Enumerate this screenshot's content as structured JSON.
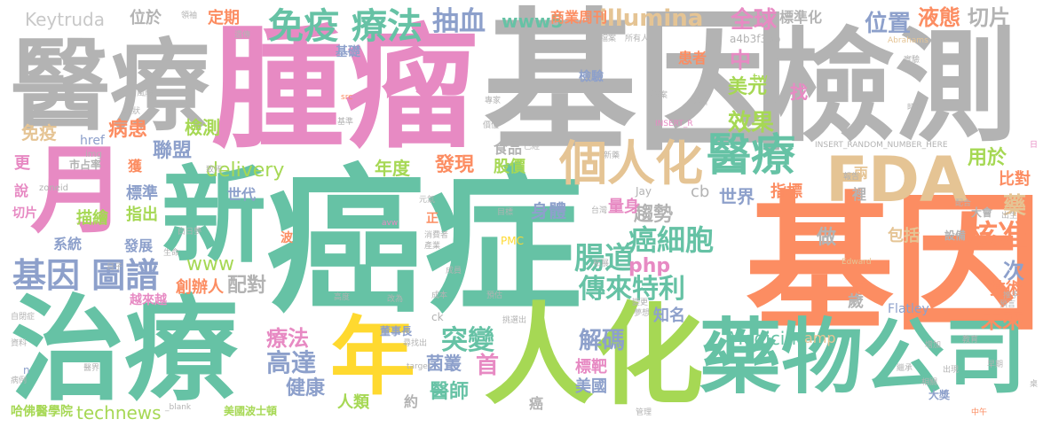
{
  "colors": {
    "background": "#ffffff",
    "teal": "#66c2a5",
    "orange": "#fc8d62",
    "gray": "#b3b3b3",
    "pink": "#e78ac3",
    "slate": "#8da0cb",
    "green": "#a6d854",
    "yellow": "#ffd92f",
    "tan": "#e5c494"
  },
  "words": {
    "aizheng": "癌症",
    "zhongliu": "腫瘤",
    "jiyin_top": "基因",
    "jiance": "檢測",
    "yiliao_top": "醫療",
    "jiyin_right": "基因",
    "zhiliao": "治療",
    "xin": "新",
    "ren_hua": "人化",
    "yaowu_gongsi": "藥物公司",
    "fda": "FDA",
    "yue": "月",
    "nian": "年",
    "geren_hua": "個人化",
    "yiliao_mid": "醫療",
    "mianyi_liaofa": "免疫 療法",
    "jiyin_tupu": "基因 圖譜",
    "chuanlai_teli": "傳來特利",
    "ai_xibao": "癌細胞",
    "chang_dao": "腸道",
    "hezhun": "核准",
    "weilai": "未來",
    "tubian": "突變",
    "gao_da": "高達",
    "liaofa_small": "療法",
    "jieme": "解碼",
    "illumina": "illumina",
    "delivery": "delivery",
    "medicine": "Medicine",
    "technews": "technews",
    "www": "www",
    "www5": "www5",
    "php": "php",
    "keytruda": "Keytruda",
    "choubing": "抽血",
    "xiaoguo": "效果",
    "quanqiu": "全球",
    "weizhi": "位置",
    "yetai": "液態",
    "qiepian_top": "切片",
    "meiyuan": "美元",
    "zhong": "中",
    "bingren": "病患",
    "mianyi_small": "免疫",
    "jiance_small": "檢測",
    "lianmeng": "聯盟",
    "niandu": "年度",
    "faxian": "發現",
    "gujia": "股價",
    "shipin": "食品",
    "quxian": "趨勢",
    "shenti": "身體",
    "liangshen": "量身",
    "shijie": "世界",
    "zhibiao": "指標",
    "yongyu": "用於",
    "bidui": "比對",
    "yao": "藥",
    "baokuo": "包括",
    "ci": "次",
    "jishu": "技術",
    "sui": "歲",
    "zhao": "找",
    "zuo": "做",
    "peidui": "配對",
    "jiankang": "健康",
    "yishi": "醫師",
    "juncong": "菌叢",
    "shou": "首",
    "zhiming": "知名",
    "biaoba": "標靶",
    "meiguo": "美國",
    "renlei": "人類",
    "yue_small": "約",
    "ai_small": "癌",
    "zhichu": "指出",
    "biaozhun": "標準",
    "miaohui": "描繪",
    "xitong": "系統",
    "fazhan": "發展",
    "chuangbanren": "創辦人",
    "yuelaiyue": "越來越",
    "huo": "獲",
    "geng": "更",
    "shuo": "說",
    "qiepian_left": "切片",
    "shidai": "世代",
    "weiyu": "位於",
    "dingqi": "定期",
    "shangye": "商業周刊",
    "biaozhunhua": "標準化",
    "jichu": "基礎",
    "huanzhe": "患者",
    "jianyan": "檢驗",
    "cb": "cb",
    "amp": "amp",
    "tw": "tw",
    "href": "href",
    "a4b": "a4b3f35b",
    "flatley": "Flatley",
    "jay": "Jay",
    "zhengque": "正",
    "boshidun": "美國波士頓",
    "hafo": "哈佛醫學院",
    "dongshizhang": "董事長",
    "yue_right": "越",
    "liang": "兩",
    "li": "裡",
    "shebei": "設備",
    "dahui": "大會",
    "dajiang": "大獎",
    "shichang": "市占率",
    "zoneid": "zoneid",
    "img": "img",
    "n": "n",
    "ck": "ck",
    "bo": "波",
    "insert": "INSERT_RANDOM_NUMBER_HERE",
    "insert_r": "INSERT_R",
    "abrahams": "Abrahams",
    "edward": "Edward",
    "pmc": "PMC",
    "src": "src",
    "avw": "avw",
    "target": "target",
    "blank": "_blank",
    "bingli": "病例",
    "yijie": "醫界",
    "ziliao": "資料",
    "zibizheng": "自閉症",
    "zhuo": "桌",
    "ri": "日",
    "shengchan": "成員",
    "zaoqi": "早期",
    "shicai": "推手",
    "chuchu": "出生",
    "zhongye": "中午",
    "yucuo": "預言",
    "suoyouren": "所有人",
    "dangan": "檔案",
    "lingqu": "領袖",
    "xiaochi": "遺傳",
    "jiyin_small1": "基準",
    "fengxian": "風險",
    "zhuangtai": "症狀",
    "zhisi": "致死",
    "shengming": "生命",
    "erzi": "日子",
    "baori": "白日夢",
    "yuandong": "元氣",
    "taiwan": "台灣",
    "mubiao": "目標",
    "chengben": "成本",
    "yuce": "預估",
    "gaodu": "高度",
    "gaiwei": "改為",
    "tiaoxuan": "挑選出",
    "xuzhao": "尋找出",
    "guanli": "管理",
    "biangeng": "變更",
    "mengxiang": "夢想",
    "tuozhan": "拓展",
    "xiaoshou": "消費者",
    "chanpin": "產業",
    "xinbei": "新藥",
    "yijing": "已經",
    "zhuanjia": "專家",
    "jiazhi": "價值",
    "shipin_small": "時鐘",
    "fenxi": "分析",
    "daan": "答案",
    "shiyan": "實驗",
    "baogao": "報告",
    "peihe": "配合",
    "jiaoyu": "教育",
    "zengjia": "增加",
    "jicheng": "繼承",
    "xiangguan": "相關",
    "chuxian": "出現"
  }
}
